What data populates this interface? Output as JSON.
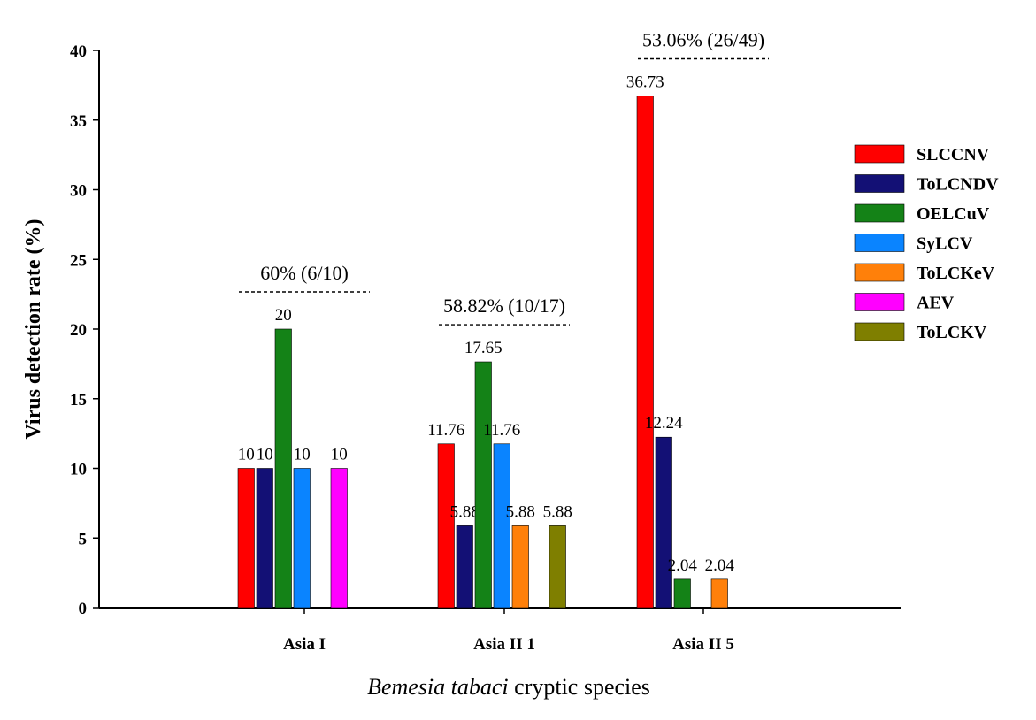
{
  "chart_data": {
    "type": "bar",
    "title": "",
    "xlabel_italic": "Bemesia tabaci",
    "xlabel_rest": " cryptic species",
    "ylabel": "Virus detection rate (%)",
    "ylim": [
      0,
      40
    ],
    "yticks": [
      0,
      5,
      10,
      15,
      20,
      25,
      30,
      35,
      40
    ],
    "categories": [
      "Asia I",
      "Asia II 1",
      "Asia II 5"
    ],
    "series": [
      {
        "name": "SLCCNV",
        "color": "#ff0000",
        "values": [
          10,
          11.76,
          36.73
        ],
        "labels": [
          "10",
          "11.76",
          "36.73"
        ]
      },
      {
        "name": "ToLCNDV",
        "color": "#131075",
        "values": [
          10,
          5.88,
          12.24
        ],
        "labels": [
          "10",
          "5.88",
          "12.24"
        ]
      },
      {
        "name": "OELCuV",
        "color": "#148217",
        "values": [
          20,
          17.65,
          2.04
        ],
        "labels": [
          "20",
          "17.65",
          "2.04"
        ]
      },
      {
        "name": "SyLCV",
        "color": "#0a84ff",
        "values": [
          10,
          11.76,
          0
        ],
        "labels": [
          "10",
          "11.76",
          ""
        ]
      },
      {
        "name": "ToLCKeV",
        "color": "#ff800a",
        "values": [
          0,
          5.88,
          2.04
        ],
        "labels": [
          "",
          "5.88",
          "2.04"
        ]
      },
      {
        "name": "AEV",
        "color": "#ff00ff",
        "values": [
          10,
          0,
          0
        ],
        "labels": [
          "10",
          "",
          ""
        ]
      },
      {
        "name": "ToLCKV",
        "color": "#7f7f00",
        "values": [
          0,
          5.88,
          0
        ],
        "labels": [
          "",
          "5.88",
          ""
        ]
      }
    ],
    "group_annotations": [
      "60% (6/10)",
      "58.82% (10/17)",
      "53.06% (26/49)"
    ],
    "legend_position": "right"
  }
}
